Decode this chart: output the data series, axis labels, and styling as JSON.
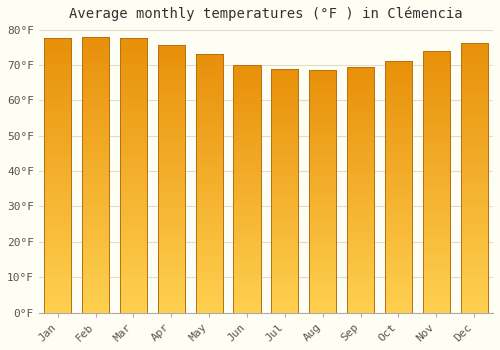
{
  "title": "Average monthly temperatures (°F ) in Clémencia",
  "months": [
    "Jan",
    "Feb",
    "Mar",
    "Apr",
    "May",
    "Jun",
    "Jul",
    "Aug",
    "Sep",
    "Oct",
    "Nov",
    "Dec"
  ],
  "values": [
    77.5,
    77.9,
    77.5,
    75.7,
    73.0,
    70.0,
    68.9,
    68.5,
    69.5,
    71.0,
    74.0,
    76.3
  ],
  "bar_color_top": "#E8900A",
  "bar_color_bottom": "#FFD050",
  "bar_edge_color": "#B87010",
  "ylim": [
    0,
    80
  ],
  "yticks": [
    0,
    10,
    20,
    30,
    40,
    50,
    60,
    70,
    80
  ],
  "ytick_labels": [
    "0°F",
    "10°F",
    "20°F",
    "30°F",
    "40°F",
    "50°F",
    "60°F",
    "70°F",
    "80°F"
  ],
  "background_color": "#FFFEF5",
  "grid_color": "#DDDDCC",
  "title_fontsize": 10,
  "tick_fontsize": 8
}
